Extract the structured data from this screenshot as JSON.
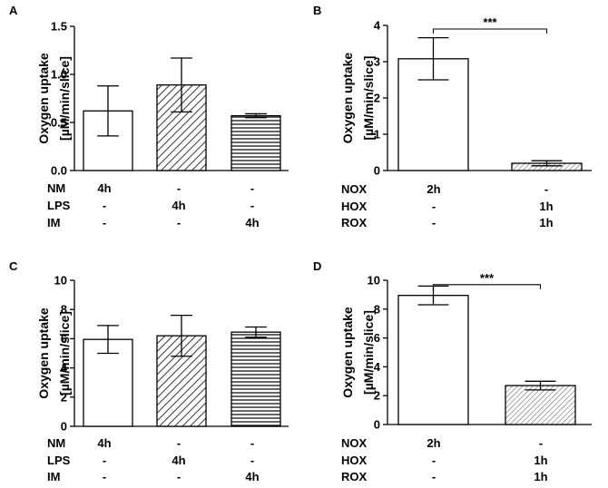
{
  "chart_data": [
    {
      "panel": "A",
      "type": "bar",
      "ylabel_lines": [
        "Oxygen uptake",
        "[µM/min/slice]"
      ],
      "ylim": [
        0,
        1.5
      ],
      "yticks": [
        "0.0",
        "0.5",
        "1.0",
        "1.5"
      ],
      "ytick_values": [
        0,
        0.5,
        1.0,
        1.5
      ],
      "series": [
        {
          "name": "Oxygen uptake",
          "values": [
            0.62,
            0.89,
            0.57
          ],
          "errors": [
            0.26,
            0.28,
            0.02
          ],
          "fills": [
            "white",
            "diagonal",
            "horizontal"
          ]
        }
      ],
      "conditions": [
        {
          "label": "NM",
          "values": [
            "4h",
            "-",
            "-"
          ]
        },
        {
          "label": "LPS",
          "values": [
            "-",
            "4h",
            "-"
          ]
        },
        {
          "label": "IM",
          "values": [
            "-",
            "-",
            "4h"
          ]
        }
      ],
      "significance": null
    },
    {
      "panel": "B",
      "type": "bar",
      "ylabel_lines": [
        "Oxygen uptake",
        "[µM/min/slice]"
      ],
      "ylim": [
        0,
        4
      ],
      "yticks": [
        "0",
        "1",
        "2",
        "3",
        "4"
      ],
      "ytick_values": [
        0,
        1,
        2,
        3,
        4
      ],
      "series": [
        {
          "name": "Oxygen uptake",
          "values": [
            3.08,
            0.2
          ],
          "errors": [
            0.58,
            0.07
          ],
          "fills": [
            "white",
            "fine-diagonal"
          ]
        }
      ],
      "conditions": [
        {
          "label": "NOX",
          "values": [
            "2h",
            "-"
          ]
        },
        {
          "label": "HOX",
          "values": [
            "-",
            "1h"
          ]
        },
        {
          "label": "ROX",
          "values": [
            "-",
            "1h"
          ]
        }
      ],
      "significance": {
        "label": "***",
        "y": 3.9
      }
    },
    {
      "panel": "C",
      "type": "bar",
      "ylabel_lines": [
        "Oxygen uptake",
        "[µM/min/slice]"
      ],
      "ylim": [
        0,
        10
      ],
      "yticks": [
        "0",
        "2",
        "4",
        "6",
        "8",
        "10"
      ],
      "ytick_values": [
        0,
        2,
        4,
        6,
        8,
        10
      ],
      "series": [
        {
          "name": "Oxygen uptake",
          "values": [
            5.95,
            6.2,
            6.45
          ],
          "errors": [
            0.95,
            1.4,
            0.35
          ],
          "fills": [
            "white",
            "diagonal",
            "horizontal"
          ]
        }
      ],
      "conditions": [
        {
          "label": "NM",
          "values": [
            "4h",
            "-",
            "-"
          ]
        },
        {
          "label": "LPS",
          "values": [
            "-",
            "4h",
            "-"
          ]
        },
        {
          "label": "IM",
          "values": [
            "-",
            "-",
            "4h"
          ]
        }
      ],
      "significance": null
    },
    {
      "panel": "D",
      "type": "bar",
      "ylabel_lines": [
        "Oxygen uptake",
        "[µM/min/slice]"
      ],
      "ylim": [
        0,
        10
      ],
      "yticks": [
        "0",
        "2",
        "4",
        "6",
        "8",
        "10"
      ],
      "ytick_values": [
        0,
        2,
        4,
        6,
        8,
        10
      ],
      "series": [
        {
          "name": "Oxygen uptake",
          "values": [
            8.95,
            2.7
          ],
          "errors": [
            0.65,
            0.3
          ],
          "fills": [
            "white",
            "fine-diagonal"
          ]
        }
      ],
      "conditions": [
        {
          "label": "NOX",
          "values": [
            "2h",
            "-"
          ]
        },
        {
          "label": "HOX",
          "values": [
            "-",
            "1h"
          ]
        },
        {
          "label": "ROX",
          "values": [
            "-",
            "1h"
          ]
        }
      ],
      "significance": {
        "label": "***",
        "y": 9.7
      }
    }
  ]
}
